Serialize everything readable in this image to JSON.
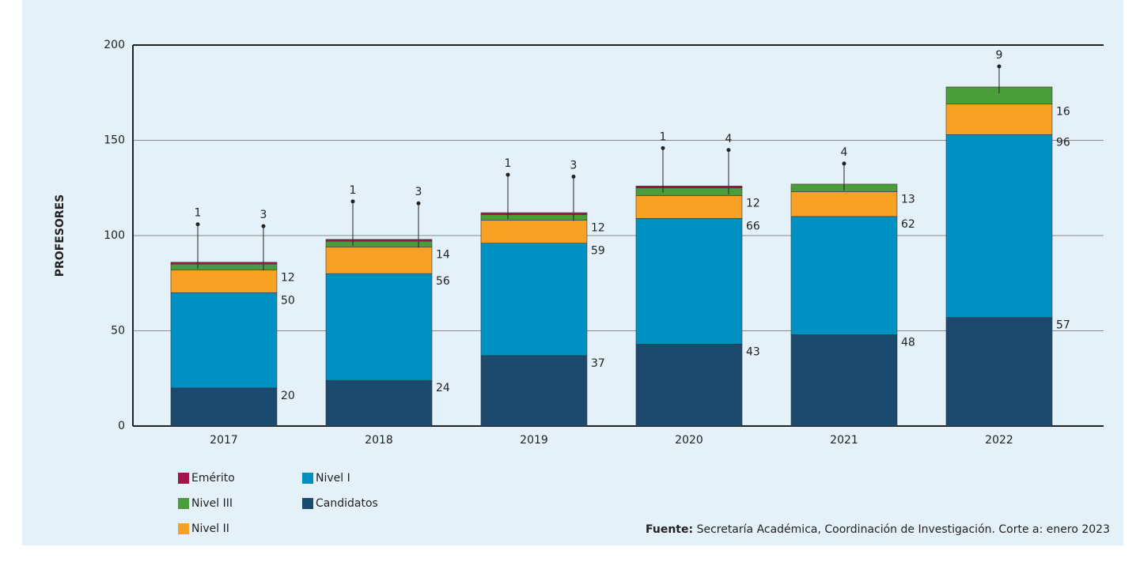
{
  "chart_data": {
    "type": "stacked_bar",
    "y_label": "PROFESORES",
    "categories": [
      "2017",
      "2018",
      "2019",
      "2020",
      "2021",
      "2022"
    ],
    "series": [
      {
        "name": "Candidatos",
        "color": "#1c4a6e",
        "values": [
          20,
          24,
          37,
          43,
          48,
          57
        ]
      },
      {
        "name": "Nivel I",
        "color": "#0090c2",
        "values": [
          50,
          56,
          59,
          66,
          62,
          96
        ]
      },
      {
        "name": "Nivel II",
        "color": "#f8a125",
        "values": [
          12,
          14,
          12,
          12,
          13,
          16
        ]
      },
      {
        "name": "Nivel III",
        "color": "#4b9d3b",
        "values": [
          3,
          3,
          3,
          4,
          4,
          9
        ]
      },
      {
        "name": "Emérito",
        "color": "#a0154a",
        "values": [
          1,
          1,
          1,
          1,
          null,
          null
        ]
      }
    ],
    "ylim": [
      0,
      200
    ],
    "yticks": [
      0,
      50,
      100,
      150,
      200
    ],
    "grid": true,
    "source_label": "Fuente:",
    "source": "Secretaría Académica, Coordinación de Investigación. Corte a: enero 2023"
  }
}
